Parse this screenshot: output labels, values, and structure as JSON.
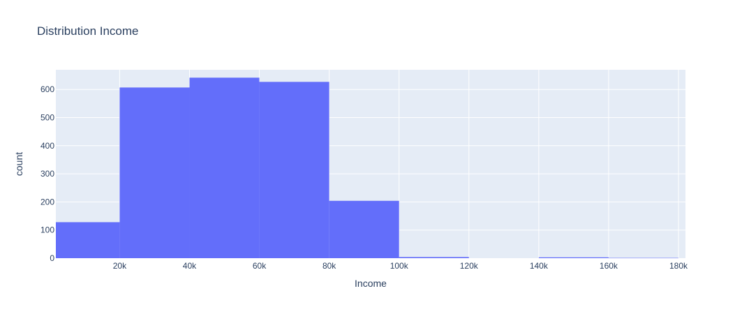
{
  "chart_data": {
    "type": "bar",
    "title": "Distribution Income",
    "xlabel": "Income",
    "ylabel": "count",
    "xlim": [
      1730,
      182000
    ],
    "ylim": [
      0,
      670
    ],
    "x_ticks": [
      20000,
      40000,
      60000,
      80000,
      100000,
      120000,
      140000,
      160000,
      180000
    ],
    "x_tick_labels": [
      "20k",
      "40k",
      "60k",
      "80k",
      "100k",
      "120k",
      "140k",
      "160k",
      "180k"
    ],
    "y_ticks": [
      0,
      100,
      200,
      300,
      400,
      500,
      600
    ],
    "y_tick_labels": [
      "0",
      "100",
      "200",
      "300",
      "400",
      "500",
      "600"
    ],
    "grid": true,
    "bar_color": "#636efa",
    "plot_bg": "#e5ecf6",
    "bins": [
      {
        "x0": 0,
        "x1": 20000,
        "count": 128
      },
      {
        "x0": 20000,
        "x1": 40000,
        "count": 607
      },
      {
        "x0": 40000,
        "x1": 60000,
        "count": 642
      },
      {
        "x0": 60000,
        "x1": 80000,
        "count": 627
      },
      {
        "x0": 80000,
        "x1": 100000,
        "count": 204
      },
      {
        "x0": 100000,
        "x1": 120000,
        "count": 4
      },
      {
        "x0": 120000,
        "x1": 140000,
        "count": 0
      },
      {
        "x0": 140000,
        "x1": 160000,
        "count": 3
      },
      {
        "x0": 160000,
        "x1": 180000,
        "count": 1
      }
    ]
  }
}
